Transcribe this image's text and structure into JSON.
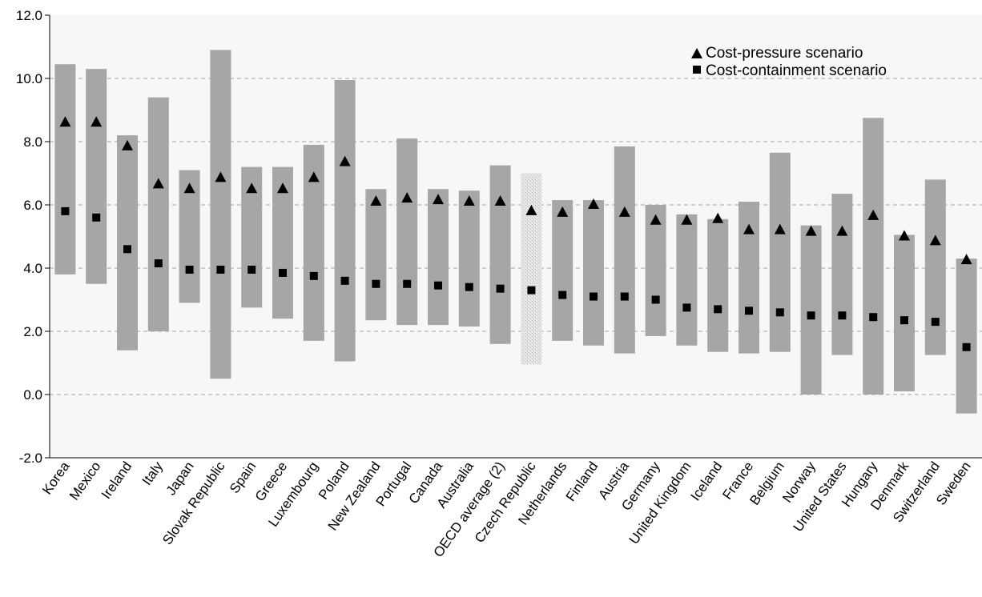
{
  "chart_data": {
    "type": "range-dot",
    "ylim": [
      -2.0,
      12.0
    ],
    "yticks": [
      "-2.0",
      "0.0",
      "2.0",
      "4.0",
      "6.0",
      "8.0",
      "10.0",
      "12.0"
    ],
    "grid": true,
    "legend_position": "top-right",
    "legend": [
      {
        "label": "Cost-pressure scenario",
        "marker": "triangle"
      },
      {
        "label": "Cost-containment scenario",
        "marker": "square"
      }
    ],
    "categories": [
      "Korea",
      "Mexico",
      "Ireland",
      "Italy",
      "Japan",
      "Slovak Republic",
      "Spain",
      "Greece",
      "Luxembourg",
      "Poland",
      "New Zealand",
      "Portugal",
      "Canada",
      "Australia",
      "OECD average (2)",
      "Czech Republic",
      "Netherlands",
      "Finland",
      "Austria",
      "Germany",
      "United Kingdom",
      "Iceland",
      "France",
      "Belgium",
      "Norway",
      "United States",
      "Hungary",
      "Denmark",
      "Switzerland",
      "Sweden"
    ],
    "series": [
      {
        "name": "Cost-pressure scenario",
        "values": [
          8.6,
          8.6,
          7.85,
          6.65,
          6.5,
          6.85,
          6.5,
          6.5,
          6.85,
          7.35,
          6.1,
          6.2,
          6.15,
          6.1,
          6.1,
          5.8,
          5.75,
          6.0,
          5.75,
          5.5,
          5.5,
          5.55,
          5.2,
          5.2,
          5.15,
          5.15,
          5.65,
          5.0,
          4.85,
          4.25
        ]
      },
      {
        "name": "Cost-containment scenario",
        "values": [
          5.8,
          5.6,
          4.6,
          4.15,
          3.95,
          3.95,
          3.95,
          3.85,
          3.75,
          3.6,
          3.5,
          3.5,
          3.45,
          3.4,
          3.35,
          3.3,
          3.15,
          3.1,
          3.1,
          3.0,
          2.75,
          2.7,
          2.65,
          2.6,
          2.5,
          2.5,
          2.45,
          2.35,
          2.3,
          1.5
        ]
      }
    ],
    "ranges": {
      "low": [
        3.8,
        3.5,
        1.4,
        2.0,
        2.9,
        0.5,
        2.75,
        2.4,
        1.7,
        1.05,
        2.35,
        2.2,
        2.2,
        2.15,
        1.6,
        0.95,
        1.7,
        1.55,
        1.3,
        1.85,
        1.55,
        1.35,
        1.3,
        1.35,
        0.0,
        1.25,
        0.0,
        0.1,
        1.25,
        -0.6
      ],
      "high": [
        10.45,
        10.3,
        8.2,
        9.4,
        7.1,
        10.9,
        7.2,
        7.2,
        7.9,
        9.95,
        6.5,
        8.1,
        6.5,
        6.45,
        7.25,
        7.0,
        6.15,
        6.15,
        7.85,
        6.0,
        5.7,
        5.55,
        6.1,
        7.65,
        5.35,
        6.35,
        8.75,
        5.05,
        6.8,
        4.3
      ]
    },
    "highlighted_category": "Czech Republic",
    "colors": {
      "plot_background": "#f7f7f7",
      "range_bar": "#a6a6a6",
      "range_bar_highlight": "#d9d9d9",
      "marker": "#000000",
      "grid": "#a6a6a6"
    }
  }
}
